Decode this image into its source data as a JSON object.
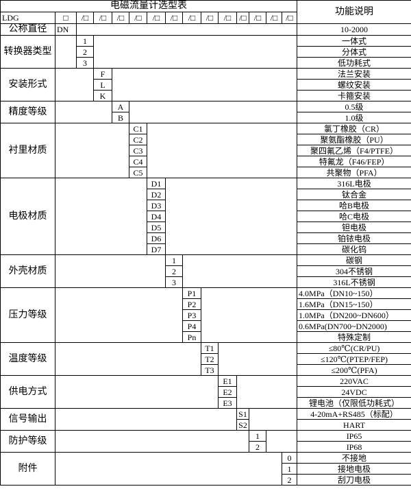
{
  "title": "电磁流量计选型表",
  "function_header": "功能说明",
  "model_row": {
    "prefix": "LDG",
    "first_box": "□",
    "slots": [
      "/□",
      "/□",
      "/□",
      "/□",
      "/□",
      "/□",
      "/□",
      "/□",
      "/□",
      "/□",
      "/□",
      "/□",
      "/□"
    ]
  },
  "nominal_diameter": {
    "label": "公称直径",
    "code": "DN",
    "description": "10-2000"
  },
  "groups": [
    {
      "label": "转换器类型",
      "col": 2,
      "items": [
        {
          "code": "1",
          "desc": "一体式"
        },
        {
          "code": "2",
          "desc": "分体式"
        },
        {
          "code": "3",
          "desc": "低功耗式"
        }
      ]
    },
    {
      "label": "安装形式",
      "col": 3,
      "items": [
        {
          "code": "F",
          "desc": "法兰安装"
        },
        {
          "code": "L",
          "desc": "螺纹安装"
        },
        {
          "code": "K",
          "desc": "卡箍安装"
        }
      ]
    },
    {
      "label": "精度等级",
      "col": 4,
      "items": [
        {
          "code": "A",
          "desc": "0.5级"
        },
        {
          "code": "B",
          "desc": "1.0级"
        }
      ]
    },
    {
      "label": "衬里材质",
      "col": 5,
      "items": [
        {
          "code": "C1",
          "desc": "氯丁橡胶（CR）"
        },
        {
          "code": "C2",
          "desc": "聚氨酯橡胶（PU）"
        },
        {
          "code": "C3",
          "desc": "聚四氟乙烯（F4/PTFE）"
        },
        {
          "code": "C4",
          "desc": "特氟龙（F46/FEP）"
        },
        {
          "code": "C5",
          "desc": "共聚物（PFA）"
        }
      ]
    },
    {
      "label": "电极材质",
      "col": 6,
      "items": [
        {
          "code": "D1",
          "desc": "316L电极"
        },
        {
          "code": "D2",
          "desc": "钛合金"
        },
        {
          "code": "D3",
          "desc": "哈B电极"
        },
        {
          "code": "D4",
          "desc": "哈C电极"
        },
        {
          "code": "D5",
          "desc": "钽电极"
        },
        {
          "code": "D6",
          "desc": "铂铱电极"
        },
        {
          "code": "D7",
          "desc": "碳化钨"
        }
      ]
    },
    {
      "label": "外壳材质",
      "col": 7,
      "items": [
        {
          "code": "1",
          "desc": "碳钢"
        },
        {
          "code": "2",
          "desc": "304不锈钢"
        },
        {
          "code": "3",
          "desc": "316L不锈钢"
        }
      ]
    },
    {
      "label": "压力等级",
      "col": 8,
      "items": [
        {
          "code": "P1",
          "desc": "4.0MPa（DN10~150）",
          "left": true
        },
        {
          "code": "P2",
          "desc": "1.6MPa（DN15~150）",
          "left": true
        },
        {
          "code": "P3",
          "desc": "1.0MPa（DN200~DN600）",
          "left": true
        },
        {
          "code": "P4",
          "desc": "0.6MPa(DN700~DN2000)",
          "left": true
        },
        {
          "code": "Pn",
          "desc": "特殊定制"
        }
      ]
    },
    {
      "label": "温度等级",
      "col": 9,
      "items": [
        {
          "code": "T1",
          "desc": "≤80℃(CR/PU)"
        },
        {
          "code": "T2",
          "desc": "≤120℃(PTEP/FEP)"
        },
        {
          "code": "T3",
          "desc": "≤200℃(PFA)"
        }
      ]
    },
    {
      "label": "供电方式",
      "col": 10,
      "items": [
        {
          "code": "E1",
          "desc": "220VAC"
        },
        {
          "code": "E2",
          "desc": "24VDC"
        },
        {
          "code": "E3",
          "desc": "锂电池（仅限低功耗式）"
        }
      ]
    },
    {
      "label": "信号输出",
      "col": 11,
      "items": [
        {
          "code": "S1",
          "desc": "4-20mA+RS485（标配）"
        },
        {
          "code": "S2",
          "desc": "HART"
        }
      ]
    },
    {
      "label": "防护等级",
      "col": 12,
      "items": [
        {
          "code": "1",
          "desc": "IP65"
        },
        {
          "code": "2",
          "desc": "IP68"
        }
      ]
    },
    {
      "label": "附件",
      "col": 14,
      "items": [
        {
          "code": "0",
          "desc": "不接地"
        },
        {
          "code": "1",
          "desc": "接地电极"
        },
        {
          "code": "2",
          "desc": "刮刀电极"
        }
      ]
    }
  ]
}
